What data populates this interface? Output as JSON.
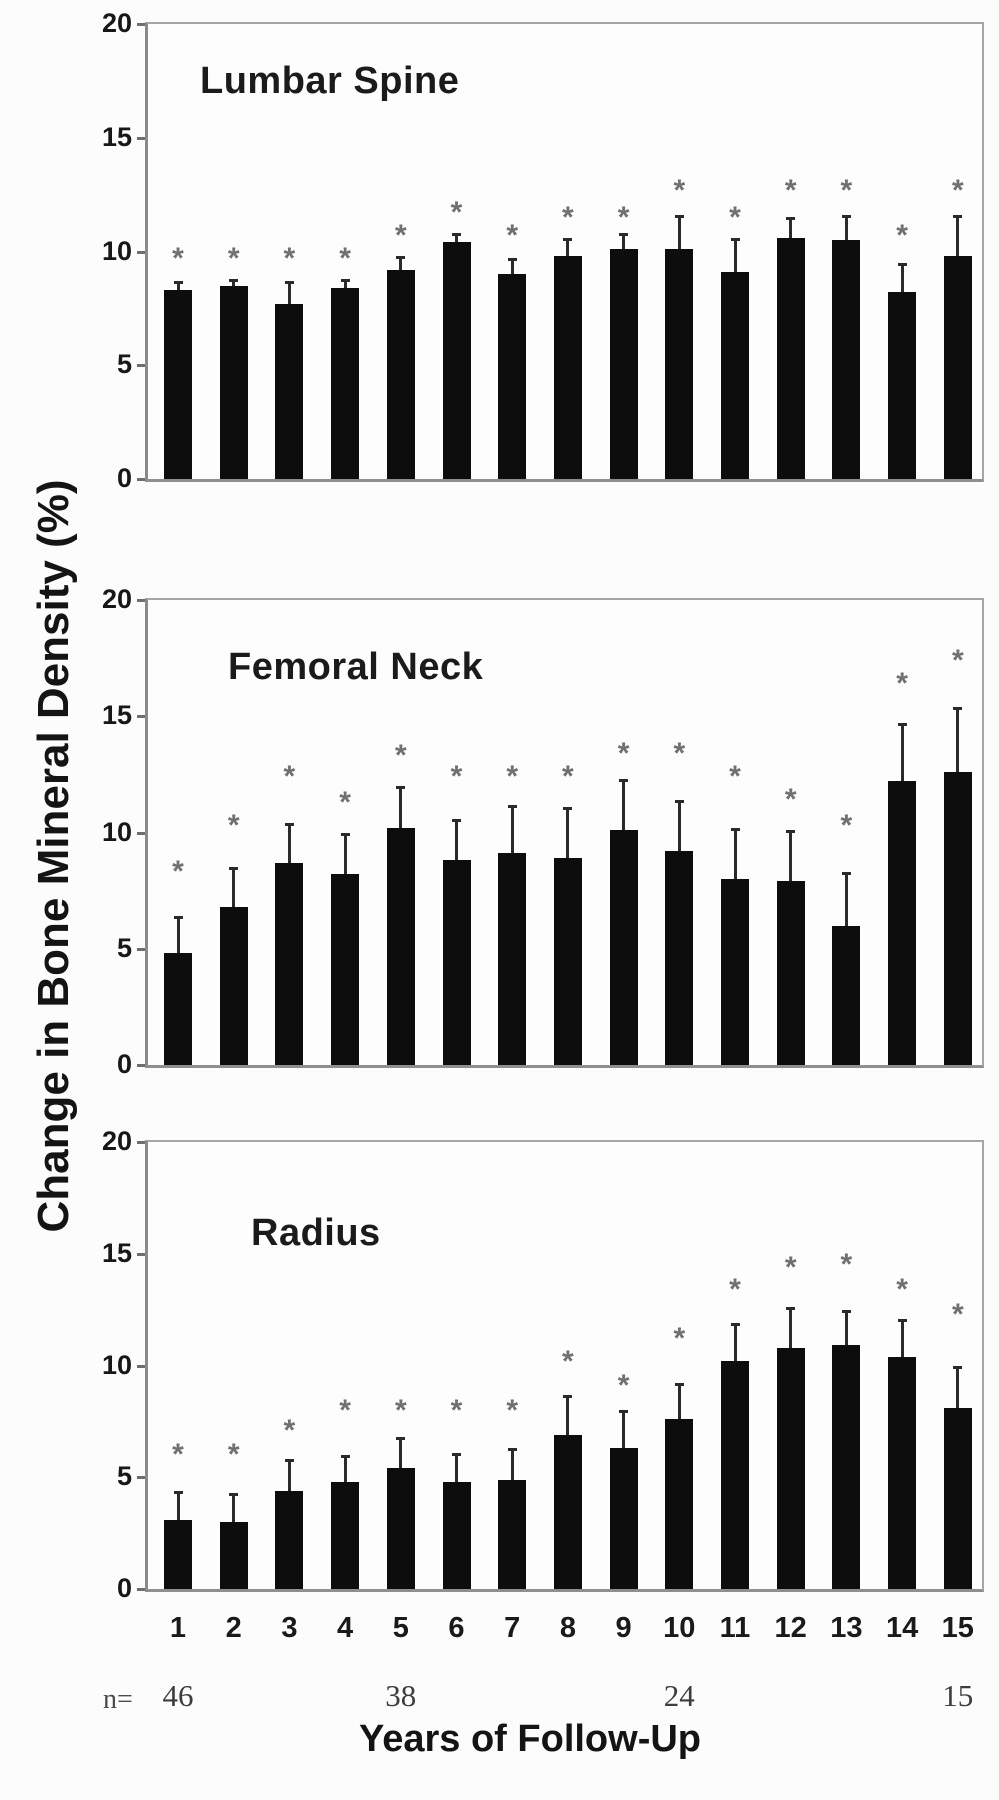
{
  "figure": {
    "ylabel": "Change in Bone Mineral Density (%)",
    "xlabel": "Years of Follow-Up",
    "n_prefix": "n=",
    "n_annotations": [
      {
        "year": "1",
        "n": "46"
      },
      {
        "year": "5",
        "n": "38"
      },
      {
        "year": "10",
        "n": "24"
      },
      {
        "year": "15",
        "n": "15"
      }
    ],
    "colors": {
      "bar": "#0d0d0d",
      "axis": "#8f8f8f",
      "asterisk": "#707070",
      "text": "#1a1a1a",
      "background": "#fcfcfc"
    },
    "significance_marker": "*"
  },
  "chart_data": [
    {
      "type": "bar",
      "title": "Lumbar Spine",
      "x": [
        "1",
        "2",
        "3",
        "4",
        "5",
        "6",
        "7",
        "8",
        "9",
        "10",
        "11",
        "12",
        "13",
        "14",
        "15"
      ],
      "values": [
        8.3,
        8.5,
        7.7,
        8.4,
        9.2,
        10.4,
        9.0,
        9.8,
        10.1,
        10.1,
        9.1,
        10.6,
        10.5,
        8.2,
        9.8
      ],
      "error_bar_top": [
        8.7,
        8.8,
        8.7,
        8.8,
        9.8,
        10.8,
        9.7,
        10.6,
        10.8,
        11.6,
        10.6,
        11.5,
        11.6,
        9.5,
        11.6
      ],
      "asterisk_y": [
        9.9,
        9.9,
        9.9,
        9.9,
        10.9,
        11.9,
        10.9,
        11.7,
        11.7,
        12.9,
        11.7,
        12.9,
        12.9,
        10.9,
        12.9
      ],
      "ylim": [
        0,
        20
      ],
      "yticks": [
        0,
        5,
        10,
        15,
        20
      ],
      "grid": false,
      "bar_color": "#0d0d0d"
    },
    {
      "type": "bar",
      "title": "Femoral Neck",
      "x": [
        "1",
        "2",
        "3",
        "4",
        "5",
        "6",
        "7",
        "8",
        "9",
        "10",
        "11",
        "12",
        "13",
        "14",
        "15"
      ],
      "values": [
        4.8,
        6.8,
        8.7,
        8.2,
        10.2,
        8.8,
        9.1,
        8.9,
        10.1,
        9.2,
        8.0,
        7.9,
        6.0,
        12.2,
        12.6
      ],
      "error_bar_top": [
        6.4,
        8.5,
        10.4,
        10.0,
        12.0,
        10.6,
        11.2,
        11.1,
        12.3,
        11.4,
        10.2,
        10.1,
        8.3,
        14.7,
        15.4
      ],
      "asterisk_y": [
        8.5,
        10.5,
        12.6,
        11.5,
        13.5,
        12.6,
        12.6,
        12.6,
        13.6,
        13.6,
        12.6,
        11.6,
        10.5,
        16.6,
        17.6
      ],
      "ylim": [
        0,
        20
      ],
      "yticks": [
        0,
        5,
        10,
        15,
        20
      ],
      "grid": false,
      "bar_color": "#0d0d0d"
    },
    {
      "type": "bar",
      "title": "Radius",
      "x": [
        "1",
        "2",
        "3",
        "4",
        "5",
        "6",
        "7",
        "8",
        "9",
        "10",
        "11",
        "12",
        "13",
        "14",
        "15"
      ],
      "values": [
        3.1,
        3.0,
        4.4,
        4.8,
        5.4,
        4.8,
        4.9,
        6.9,
        6.3,
        7.6,
        10.2,
        10.8,
        10.9,
        10.4,
        8.1
      ],
      "error_bar_top": [
        4.4,
        4.3,
        5.8,
        6.0,
        6.8,
        6.1,
        6.3,
        8.7,
        8.0,
        9.2,
        11.9,
        12.6,
        12.5,
        12.1,
        10.0
      ],
      "asterisk_y": [
        6.2,
        6.2,
        7.3,
        8.2,
        8.2,
        8.2,
        8.2,
        10.4,
        9.3,
        11.4,
        13.6,
        14.6,
        14.7,
        13.6,
        12.5
      ],
      "ylim": [
        0,
        20
      ],
      "yticks": [
        0,
        5,
        10,
        15,
        20
      ],
      "grid": false,
      "bar_color": "#0d0d0d"
    }
  ]
}
